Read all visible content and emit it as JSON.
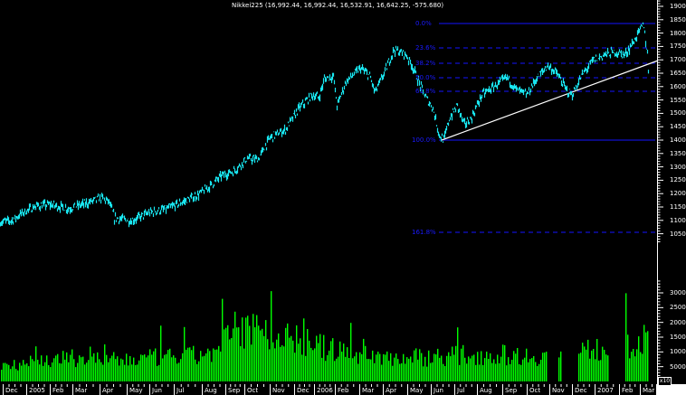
{
  "header": {
    "title": "Nikkei225 (16,992.44, 16,992.44, 16,532.91, 16,642.25, -575.680)"
  },
  "price_axis": {
    "labels": [
      "19000",
      "18500",
      "18000",
      "17500",
      "17000",
      "16500",
      "16000",
      "15500",
      "15000",
      "14500",
      "14000",
      "13500",
      "13000",
      "12500",
      "12000",
      "11500",
      "11000",
      "10500"
    ]
  },
  "volume_axis": {
    "labels": [
      "30000",
      "25000",
      "20000",
      "15000",
      "10000",
      "5000"
    ],
    "unit_label": "x10"
  },
  "x_axis": {
    "labels": [
      "Dec",
      "2005",
      "Feb",
      "Mar",
      "Apr",
      "May",
      "Jun",
      "Jul",
      "Aug",
      "Sep",
      "Oct",
      "Nov",
      "Dec",
      "2006",
      "Feb",
      "Mar",
      "Apr",
      "May",
      "Jun",
      "Jul",
      "Aug",
      "Sep",
      "Oct",
      "Nov",
      "Dec",
      "2007",
      "Feb",
      "Mar"
    ]
  },
  "fibonacci": {
    "levels": [
      {
        "label": "0.0%",
        "value": 18300,
        "style": "solid"
      },
      {
        "label": "23.6%",
        "value": 17350,
        "style": "dashed"
      },
      {
        "label": "38.2%",
        "value": 16780,
        "style": "dashed"
      },
      {
        "label": "50.0%",
        "value": 16300,
        "style": "dashed"
      },
      {
        "label": "61.8%",
        "value": 15800,
        "style": "dashed"
      },
      {
        "label": "100.0%",
        "value": 14000,
        "style": "solid"
      },
      {
        "label": "161.8%",
        "value": 11450,
        "style": "dashed"
      }
    ],
    "color": "#1414ff"
  },
  "colors": {
    "background": "#000000",
    "price": "#19e6f0",
    "volume": "#00ff00",
    "trendline": "#ffffff",
    "fib": "#1414ff",
    "axis": "#ffffff"
  },
  "chart_data": {
    "type": "line",
    "title": "Nikkei225 (16,992.44, 16,992.44, 16,532.91, 16,642.25, -575.680)",
    "xlabel": "",
    "ylabel": "",
    "ylim": [
      10200,
      19300
    ],
    "x": [
      "2004-12",
      "2005-01",
      "2005-02",
      "2005-03",
      "2005-04",
      "2005-05",
      "2005-06",
      "2005-07",
      "2005-08",
      "2005-09",
      "2005-10",
      "2005-11",
      "2005-12",
      "2006-01",
      "2006-02",
      "2006-03",
      "2006-04",
      "2006-05",
      "2006-06",
      "2006-07",
      "2006-08",
      "2006-09",
      "2006-10",
      "2006-11",
      "2006-12",
      "2007-01",
      "2007-02",
      "2007-03"
    ],
    "series": [
      {
        "name": "Nikkei225 close",
        "values": [
          10900,
          11400,
          11550,
          11800,
          11150,
          11200,
          11450,
          11800,
          12300,
          13100,
          13300,
          14600,
          15700,
          16200,
          16200,
          16400,
          17300,
          16200,
          14500,
          15300,
          15900,
          16100,
          16500,
          15900,
          16800,
          17300,
          18200,
          16642
        ]
      },
      {
        "name": "Volume",
        "values": [
          6500,
          8000,
          7500,
          8500,
          7000,
          7000,
          7500,
          8000,
          10000,
          16000,
          20000,
          18000,
          17000,
          16000,
          15000,
          14000,
          11000,
          14000,
          11000,
          9000,
          8500,
          9000,
          8000,
          9000,
          10000,
          12000,
          14000,
          17000
        ]
      }
    ],
    "fibonacci_retracement": {
      "high": 18300,
      "low": 14000,
      "levels": [
        "0.0%",
        "23.6%",
        "38.2%",
        "50.0%",
        "61.8%",
        "100.0%",
        "161.8%"
      ]
    },
    "trendline": {
      "from": [
        "2006-06",
        14000
      ],
      "to": [
        "2007-03",
        16700
      ]
    },
    "volume_ylim": [
      0,
      32000
    ],
    "grid": false,
    "legend": "none"
  }
}
